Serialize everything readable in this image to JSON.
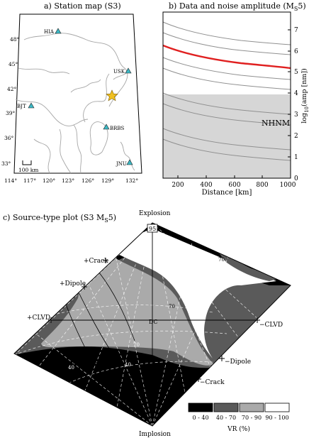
{
  "panel_a": {
    "title": "a) Station map (S3)",
    "stations": [
      {
        "code": "HIA"
      },
      {
        "code": "USK"
      },
      {
        "code": "BJT"
      },
      {
        "code": "BRBS"
      },
      {
        "code": "JNU"
      }
    ],
    "lon_ticks": [
      "114°",
      "117°",
      "120°",
      "123°",
      "126°",
      "129°",
      "132°"
    ],
    "lat_ticks": [
      "33°",
      "36°",
      "39°",
      "42°",
      "45°",
      "48°"
    ],
    "scale_label": "100 km",
    "colors": {
      "station": "#3cb8c4",
      "event": "#f0c020",
      "coast": "#a0a0a0"
    }
  },
  "panel_b": {
    "title": "b) Data and noise amplitude (M",
    "title_sub": "S",
    "title_end": "5)",
    "ylabel_pre": "log",
    "ylabel_sub": "10",
    "ylabel_post": "(amp [nm])",
    "xlabel": "Distance [km]",
    "noise_label": "NHNM",
    "xticks": [
      "200",
      "400",
      "600",
      "800",
      "1000"
    ],
    "yticks": [
      "0",
      "1",
      "2",
      "3",
      "4",
      "5",
      "6",
      "7"
    ],
    "colors": {
      "data": "#e02020",
      "noise": "#d6d6d6",
      "curves": "#909090"
    }
  },
  "panel_c": {
    "title": "c) Source-type plot (S3 M",
    "title_sub": "S",
    "title_end": "5)",
    "labels": {
      "explosion": "Explosion",
      "implosion": "Implosion",
      "pcrack": "+Crack",
      "pdipole": "+Dipole",
      "pclvd": "+CLVD",
      "dc": "DC",
      "mclvd": "−CLVD",
      "mdipole": "−Dipole",
      "mcrack": "−Crack",
      "iso_box": "95"
    },
    "contours": [
      "40",
      "70",
      "70",
      "40",
      "70"
    ],
    "legend": {
      "items": [
        {
          "label": "0 - 40",
          "color": "#000000"
        },
        {
          "label": "40 - 70",
          "color": "#5a5a5a"
        },
        {
          "label": "70 - 90",
          "color": "#aaaaaa"
        },
        {
          "label": "90 - 100",
          "color": "#ffffff"
        }
      ],
      "title": "VR (%)"
    }
  }
}
